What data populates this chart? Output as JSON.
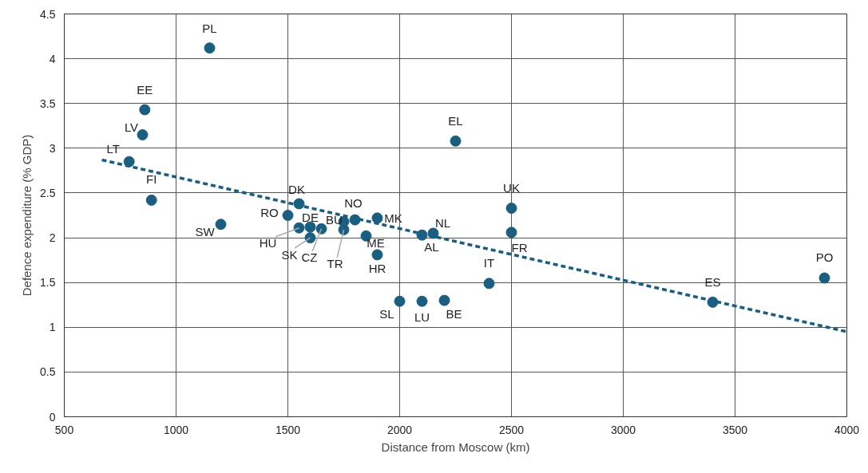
{
  "chart_data": {
    "type": "scatter",
    "xlabel": "Distance from Moscow (km)",
    "ylabel": "Defence expenditure (% GDP)",
    "xlim": [
      500,
      4000
    ],
    "xticks": [
      500,
      1000,
      1500,
      2000,
      2500,
      3000,
      3500,
      4000
    ],
    "ylim": [
      0,
      4.5
    ],
    "yticks": [
      0,
      0.5,
      1,
      1.5,
      2,
      2.5,
      3,
      3.5,
      4,
      4.5
    ],
    "grid": true,
    "series": [
      {
        "marker": "circle",
        "color": "#1b5e80",
        "x": [
          1150,
          860,
          850,
          790,
          890,
          1200,
          1500,
          1550,
          1550,
          1600,
          1600,
          1650,
          1750,
          1750,
          1800,
          1850,
          1900,
          1900,
          2100,
          2150,
          2250,
          2500,
          2500,
          2400,
          2000,
          2100,
          2200,
          3400,
          3900
        ],
        "values": [
          4.12,
          3.43,
          3.15,
          2.85,
          2.42,
          2.15,
          2.25,
          2.38,
          2.11,
          2.12,
          2.0,
          2.1,
          2.18,
          2.09,
          2.2,
          2.02,
          2.22,
          1.81,
          2.03,
          2.05,
          3.08,
          2.33,
          2.06,
          1.49,
          1.29,
          1.29,
          1.3,
          1.28,
          1.55
        ]
      },
      {
        "type": "line",
        "color": "#1b5e80",
        "line_style": "dashed",
        "x": [
          668,
          4000
        ],
        "values": [
          2.87,
          0.95
        ]
      }
    ],
    "annotations": [
      {
        "text": "PL",
        "x": 1150,
        "y": 4.12
      },
      {
        "text": "EE",
        "x": 860,
        "y": 3.43
      },
      {
        "text": "LV",
        "x": 850,
        "y": 3.15
      },
      {
        "text": "LT",
        "x": 790,
        "y": 2.85
      },
      {
        "text": "FI",
        "x": 890,
        "y": 2.42
      },
      {
        "text": "SW",
        "x": 1200,
        "y": 2.15
      },
      {
        "text": "RO",
        "x": 1500,
        "y": 2.25
      },
      {
        "text": "DK",
        "x": 1550,
        "y": 2.38
      },
      {
        "text": "HU",
        "x": 1550,
        "y": 2.11
      },
      {
        "text": "DE",
        "x": 1600,
        "y": 2.12
      },
      {
        "text": "SK",
        "x": 1600,
        "y": 2.0
      },
      {
        "text": "CZ",
        "x": 1650,
        "y": 2.1
      },
      {
        "text": "BU",
        "x": 1750,
        "y": 2.18
      },
      {
        "text": "TR",
        "x": 1750,
        "y": 2.09
      },
      {
        "text": "NO",
        "x": 1800,
        "y": 2.2
      },
      {
        "text": "ME",
        "x": 1850,
        "y": 2.02
      },
      {
        "text": "MK",
        "x": 1900,
        "y": 2.22
      },
      {
        "text": "HR",
        "x": 1900,
        "y": 1.81
      },
      {
        "text": "AL",
        "x": 2100,
        "y": 2.03
      },
      {
        "text": "NL",
        "x": 2150,
        "y": 2.05
      },
      {
        "text": "EL",
        "x": 2250,
        "y": 3.08
      },
      {
        "text": "UK",
        "x": 2500,
        "y": 2.33
      },
      {
        "text": "FR",
        "x": 2500,
        "y": 2.06
      },
      {
        "text": "IT",
        "x": 2400,
        "y": 1.49
      },
      {
        "text": "SL",
        "x": 2000,
        "y": 1.29
      },
      {
        "text": "LU",
        "x": 2100,
        "y": 1.29
      },
      {
        "text": "BE",
        "x": 2200,
        "y": 1.3
      },
      {
        "text": "ES",
        "x": 3400,
        "y": 1.28
      },
      {
        "text": "PO",
        "x": 3900,
        "y": 1.55
      }
    ]
  }
}
